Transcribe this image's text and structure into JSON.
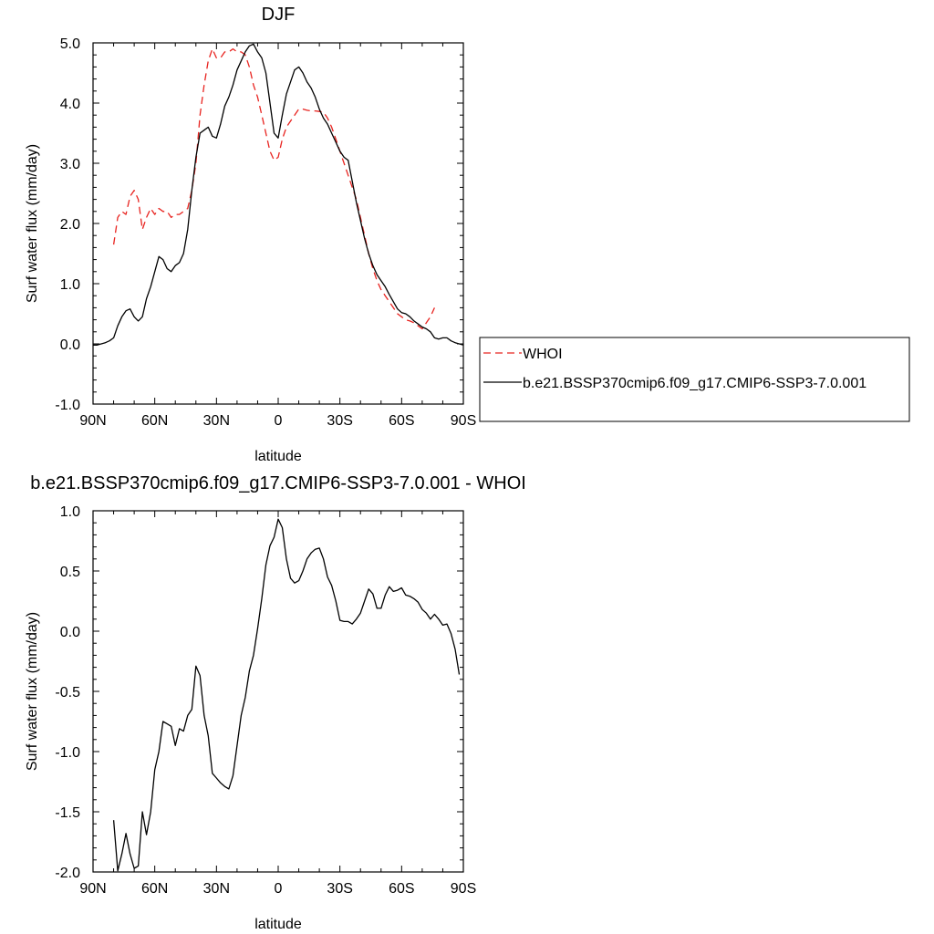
{
  "chart_data": [
    {
      "type": "line",
      "title": "DJF",
      "xlabel": "latitude",
      "ylabel": "Surf water flux (mm/day)",
      "xlim": [
        90,
        -90
      ],
      "ylim": [
        -1.0,
        5.0
      ],
      "x_ticks": [
        90,
        60,
        30,
        0,
        -30,
        -60,
        -90
      ],
      "x_tick_labels": [
        "90N",
        "60N",
        "30N",
        "0",
        "30S",
        "60S",
        "90S"
      ],
      "y_ticks": [
        -1.0,
        0.0,
        1.0,
        2.0,
        3.0,
        4.0,
        5.0
      ],
      "y_tick_labels": [
        "-1.0",
        "0.0",
        "1.0",
        "2.0",
        "3.0",
        "4.0",
        "5.0"
      ],
      "legend_position": "right",
      "series": [
        {
          "name": "WHOI",
          "color": "#e8231f",
          "dash": "dashed",
          "points": [
            [
              80,
              1.65
            ],
            [
              78,
              2.1
            ],
            [
              76,
              2.2
            ],
            [
              74,
              2.15
            ],
            [
              72,
              2.45
            ],
            [
              70,
              2.55
            ],
            [
              68,
              2.4
            ],
            [
              66,
              1.9
            ],
            [
              64,
              2.1
            ],
            [
              62,
              2.25
            ],
            [
              60,
              2.15
            ],
            [
              58,
              2.25
            ],
            [
              56,
              2.2
            ],
            [
              54,
              2.2
            ],
            [
              52,
              2.1
            ],
            [
              50,
              2.15
            ],
            [
              48,
              2.15
            ],
            [
              46,
              2.2
            ],
            [
              44,
              2.25
            ],
            [
              42,
              2.55
            ],
            [
              40,
              3.0
            ],
            [
              38,
              3.8
            ],
            [
              36,
              4.3
            ],
            [
              34,
              4.7
            ],
            [
              32,
              4.9
            ],
            [
              30,
              4.75
            ],
            [
              28,
              4.75
            ],
            [
              26,
              4.85
            ],
            [
              24,
              4.85
            ],
            [
              22,
              4.9
            ],
            [
              20,
              4.85
            ],
            [
              18,
              4.85
            ],
            [
              16,
              4.8
            ],
            [
              14,
              4.6
            ],
            [
              12,
              4.3
            ],
            [
              10,
              4.1
            ],
            [
              8,
              3.8
            ],
            [
              6,
              3.5
            ],
            [
              4,
              3.2
            ],
            [
              2,
              3.05
            ],
            [
              0,
              3.1
            ],
            [
              -2,
              3.4
            ],
            [
              -4,
              3.6
            ],
            [
              -6,
              3.7
            ],
            [
              -8,
              3.8
            ],
            [
              -10,
              3.9
            ],
            [
              -12,
              3.9
            ],
            [
              -14,
              3.88
            ],
            [
              -16,
              3.87
            ],
            [
              -18,
              3.87
            ],
            [
              -20,
              3.86
            ],
            [
              -22,
              3.85
            ],
            [
              -24,
              3.75
            ],
            [
              -26,
              3.6
            ],
            [
              -28,
              3.4
            ],
            [
              -30,
              3.2
            ],
            [
              -32,
              3.0
            ],
            [
              -34,
              2.8
            ],
            [
              -36,
              2.6
            ],
            [
              -38,
              2.4
            ],
            [
              -40,
              2.1
            ],
            [
              -42,
              1.8
            ],
            [
              -44,
              1.5
            ],
            [
              -46,
              1.25
            ],
            [
              -48,
              1.05
            ],
            [
              -50,
              0.9
            ],
            [
              -52,
              0.8
            ],
            [
              -54,
              0.7
            ],
            [
              -56,
              0.6
            ],
            [
              -58,
              0.5
            ],
            [
              -60,
              0.45
            ],
            [
              -62,
              0.4
            ],
            [
              -64,
              0.38
            ],
            [
              -66,
              0.35
            ],
            [
              -68,
              0.3
            ],
            [
              -70,
              0.25
            ],
            [
              -72,
              0.35
            ],
            [
              -74,
              0.45
            ],
            [
              -76,
              0.6
            ]
          ]
        },
        {
          "name": "b.e21.BSSP370cmip6.f09_g17.CMIP6-SSP3-7.0.001",
          "color": "#000000",
          "dash": "solid",
          "points": [
            [
              90,
              -0.02
            ],
            [
              88,
              -0.02
            ],
            [
              86,
              0.0
            ],
            [
              84,
              0.02
            ],
            [
              82,
              0.05
            ],
            [
              80,
              0.1
            ],
            [
              78,
              0.3
            ],
            [
              76,
              0.45
            ],
            [
              74,
              0.55
            ],
            [
              72,
              0.58
            ],
            [
              70,
              0.45
            ],
            [
              68,
              0.38
            ],
            [
              66,
              0.45
            ],
            [
              64,
              0.75
            ],
            [
              62,
              0.95
            ],
            [
              60,
              1.2
            ],
            [
              58,
              1.45
            ],
            [
              56,
              1.4
            ],
            [
              54,
              1.25
            ],
            [
              52,
              1.2
            ],
            [
              50,
              1.3
            ],
            [
              48,
              1.35
            ],
            [
              46,
              1.5
            ],
            [
              44,
              1.9
            ],
            [
              42,
              2.55
            ],
            [
              40,
              3.1
            ],
            [
              38,
              3.5
            ],
            [
              36,
              3.55
            ],
            [
              34,
              3.6
            ],
            [
              32,
              3.45
            ],
            [
              30,
              3.42
            ],
            [
              28,
              3.65
            ],
            [
              26,
              3.95
            ],
            [
              24,
              4.1
            ],
            [
              22,
              4.3
            ],
            [
              20,
              4.55
            ],
            [
              18,
              4.7
            ],
            [
              16,
              4.85
            ],
            [
              14,
              4.95
            ],
            [
              12,
              4.98
            ],
            [
              10,
              4.85
            ],
            [
              8,
              4.75
            ],
            [
              6,
              4.5
            ],
            [
              4,
              4.0
            ],
            [
              2,
              3.5
            ],
            [
              0,
              3.42
            ],
            [
              -2,
              3.8
            ],
            [
              -4,
              4.15
            ],
            [
              -6,
              4.35
            ],
            [
              -8,
              4.55
            ],
            [
              -10,
              4.6
            ],
            [
              -12,
              4.5
            ],
            [
              -14,
              4.35
            ],
            [
              -16,
              4.25
            ],
            [
              -18,
              4.1
            ],
            [
              -20,
              3.9
            ],
            [
              -22,
              3.75
            ],
            [
              -24,
              3.65
            ],
            [
              -26,
              3.5
            ],
            [
              -28,
              3.35
            ],
            [
              -30,
              3.2
            ],
            [
              -32,
              3.1
            ],
            [
              -34,
              3.05
            ],
            [
              -36,
              2.7
            ],
            [
              -38,
              2.35
            ],
            [
              -40,
              2.05
            ],
            [
              -42,
              1.75
            ],
            [
              -44,
              1.5
            ],
            [
              -46,
              1.3
            ],
            [
              -48,
              1.15
            ],
            [
              -50,
              1.05
            ],
            [
              -52,
              0.95
            ],
            [
              -54,
              0.82
            ],
            [
              -56,
              0.7
            ],
            [
              -58,
              0.58
            ],
            [
              -60,
              0.52
            ],
            [
              -62,
              0.5
            ],
            [
              -64,
              0.45
            ],
            [
              -66,
              0.38
            ],
            [
              -68,
              0.33
            ],
            [
              -70,
              0.28
            ],
            [
              -72,
              0.25
            ],
            [
              -74,
              0.2
            ],
            [
              -76,
              0.1
            ],
            [
              -78,
              0.08
            ],
            [
              -80,
              0.1
            ],
            [
              -82,
              0.1
            ],
            [
              -84,
              0.05
            ],
            [
              -86,
              0.02
            ],
            [
              -88,
              0.0
            ],
            [
              -90,
              -0.02
            ]
          ]
        }
      ]
    },
    {
      "type": "line",
      "title": "b.e21.BSSP370cmip6.f09_g17.CMIP6-SSP3-7.0.001 - WHOI",
      "xlabel": "latitude",
      "ylabel": "Surf water flux (mm/day)",
      "xlim": [
        90,
        -90
      ],
      "ylim": [
        -2.0,
        1.0
      ],
      "x_ticks": [
        90,
        60,
        30,
        0,
        -30,
        -60,
        -90
      ],
      "x_tick_labels": [
        "90N",
        "60N",
        "30N",
        "0",
        "30S",
        "60S",
        "90S"
      ],
      "y_ticks": [
        -2.0,
        -1.5,
        -1.0,
        -0.5,
        0.0,
        0.5,
        1.0
      ],
      "y_tick_labels": [
        "-2.0",
        "-1.5",
        "-1.0",
        "-0.5",
        "0.0",
        "0.5",
        "1.0"
      ],
      "series": [
        {
          "color": "#000000",
          "dash": "solid",
          "points": [
            [
              80,
              -1.57
            ],
            [
              78,
              -1.99
            ],
            [
              76,
              -1.85
            ],
            [
              74,
              -1.68
            ],
            [
              72,
              -1.85
            ],
            [
              70,
              -1.97
            ],
            [
              68,
              -1.95
            ],
            [
              66,
              -1.5
            ],
            [
              64,
              -1.69
            ],
            [
              62,
              -1.5
            ],
            [
              60,
              -1.15
            ],
            [
              58,
              -1.0
            ],
            [
              56,
              -0.75
            ],
            [
              54,
              -0.77
            ],
            [
              52,
              -0.79
            ],
            [
              50,
              -0.95
            ],
            [
              48,
              -0.81
            ],
            [
              46,
              -0.83
            ],
            [
              44,
              -0.7
            ],
            [
              42,
              -0.65
            ],
            [
              40,
              -0.29
            ],
            [
              38,
              -0.37
            ],
            [
              36,
              -0.7
            ],
            [
              34,
              -0.87
            ],
            [
              32,
              -1.18
            ],
            [
              30,
              -1.22
            ],
            [
              28,
              -1.26
            ],
            [
              26,
              -1.29
            ],
            [
              24,
              -1.31
            ],
            [
              22,
              -1.2
            ],
            [
              20,
              -0.95
            ],
            [
              18,
              -0.7
            ],
            [
              16,
              -0.55
            ],
            [
              14,
              -0.33
            ],
            [
              12,
              -0.2
            ],
            [
              10,
              0.02
            ],
            [
              8,
              0.27
            ],
            [
              6,
              0.55
            ],
            [
              4,
              0.71
            ],
            [
              2,
              0.78
            ],
            [
              0,
              0.93
            ],
            [
              -2,
              0.86
            ],
            [
              -4,
              0.6
            ],
            [
              -6,
              0.44
            ],
            [
              -8,
              0.4
            ],
            [
              -10,
              0.42
            ],
            [
              -12,
              0.5
            ],
            [
              -14,
              0.6
            ],
            [
              -16,
              0.65
            ],
            [
              -18,
              0.68
            ],
            [
              -20,
              0.69
            ],
            [
              -22,
              0.6
            ],
            [
              -24,
              0.45
            ],
            [
              -26,
              0.38
            ],
            [
              -28,
              0.25
            ],
            [
              -30,
              0.09
            ],
            [
              -32,
              0.08
            ],
            [
              -34,
              0.08
            ],
            [
              -36,
              0.06
            ],
            [
              -38,
              0.1
            ],
            [
              -40,
              0.15
            ],
            [
              -42,
              0.25
            ],
            [
              -44,
              0.35
            ],
            [
              -46,
              0.31
            ],
            [
              -48,
              0.19
            ],
            [
              -50,
              0.19
            ],
            [
              -52,
              0.3
            ],
            [
              -54,
              0.37
            ],
            [
              -56,
              0.33
            ],
            [
              -58,
              0.34
            ],
            [
              -60,
              0.36
            ],
            [
              -62,
              0.3
            ],
            [
              -64,
              0.29
            ],
            [
              -66,
              0.27
            ],
            [
              -68,
              0.24
            ],
            [
              -70,
              0.18
            ],
            [
              -72,
              0.15
            ],
            [
              -74,
              0.1
            ],
            [
              -76,
              0.14
            ],
            [
              -78,
              0.1
            ],
            [
              -80,
              0.05
            ],
            [
              -82,
              0.06
            ],
            [
              -84,
              -0.02
            ],
            [
              -86,
              -0.15
            ],
            [
              -88,
              -0.36
            ]
          ]
        }
      ]
    }
  ]
}
